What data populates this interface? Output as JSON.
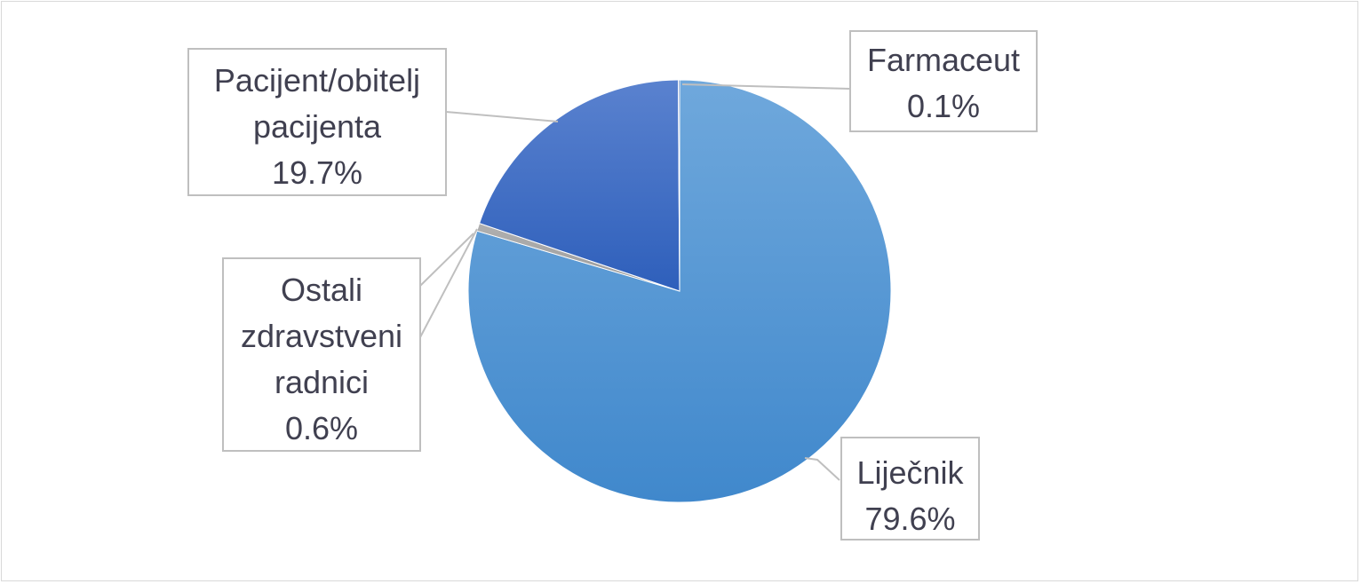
{
  "chart_data": {
    "type": "pie",
    "slices": [
      {
        "name": "Liječnik",
        "value": 79.6,
        "label_lines": [
          "Liječnik"
        ],
        "value_label": "79.6%",
        "color": "#4a90d4"
      },
      {
        "name": "Ostali zdravstveni radnici",
        "value": 0.6,
        "label_lines": [
          "Ostali",
          "zdravstveni",
          "radnici"
        ],
        "value_label": "0.6%",
        "color": "#a5a5a5"
      },
      {
        "name": "Pacijent/obitelj pacijenta",
        "value": 19.7,
        "label_lines": [
          "Pacijent/obitelj",
          "pacijenta"
        ],
        "value_label": "19.7%",
        "color": "#3f6fc8"
      },
      {
        "name": "Farmaceut",
        "value": 0.1,
        "label_lines": [
          "Farmaceut"
        ],
        "value_label": "0.1%",
        "color": "#2f5597"
      }
    ],
    "start_angle_deg": 0,
    "direction": "clockwise",
    "legend": "none",
    "data_labels": "callouts"
  }
}
